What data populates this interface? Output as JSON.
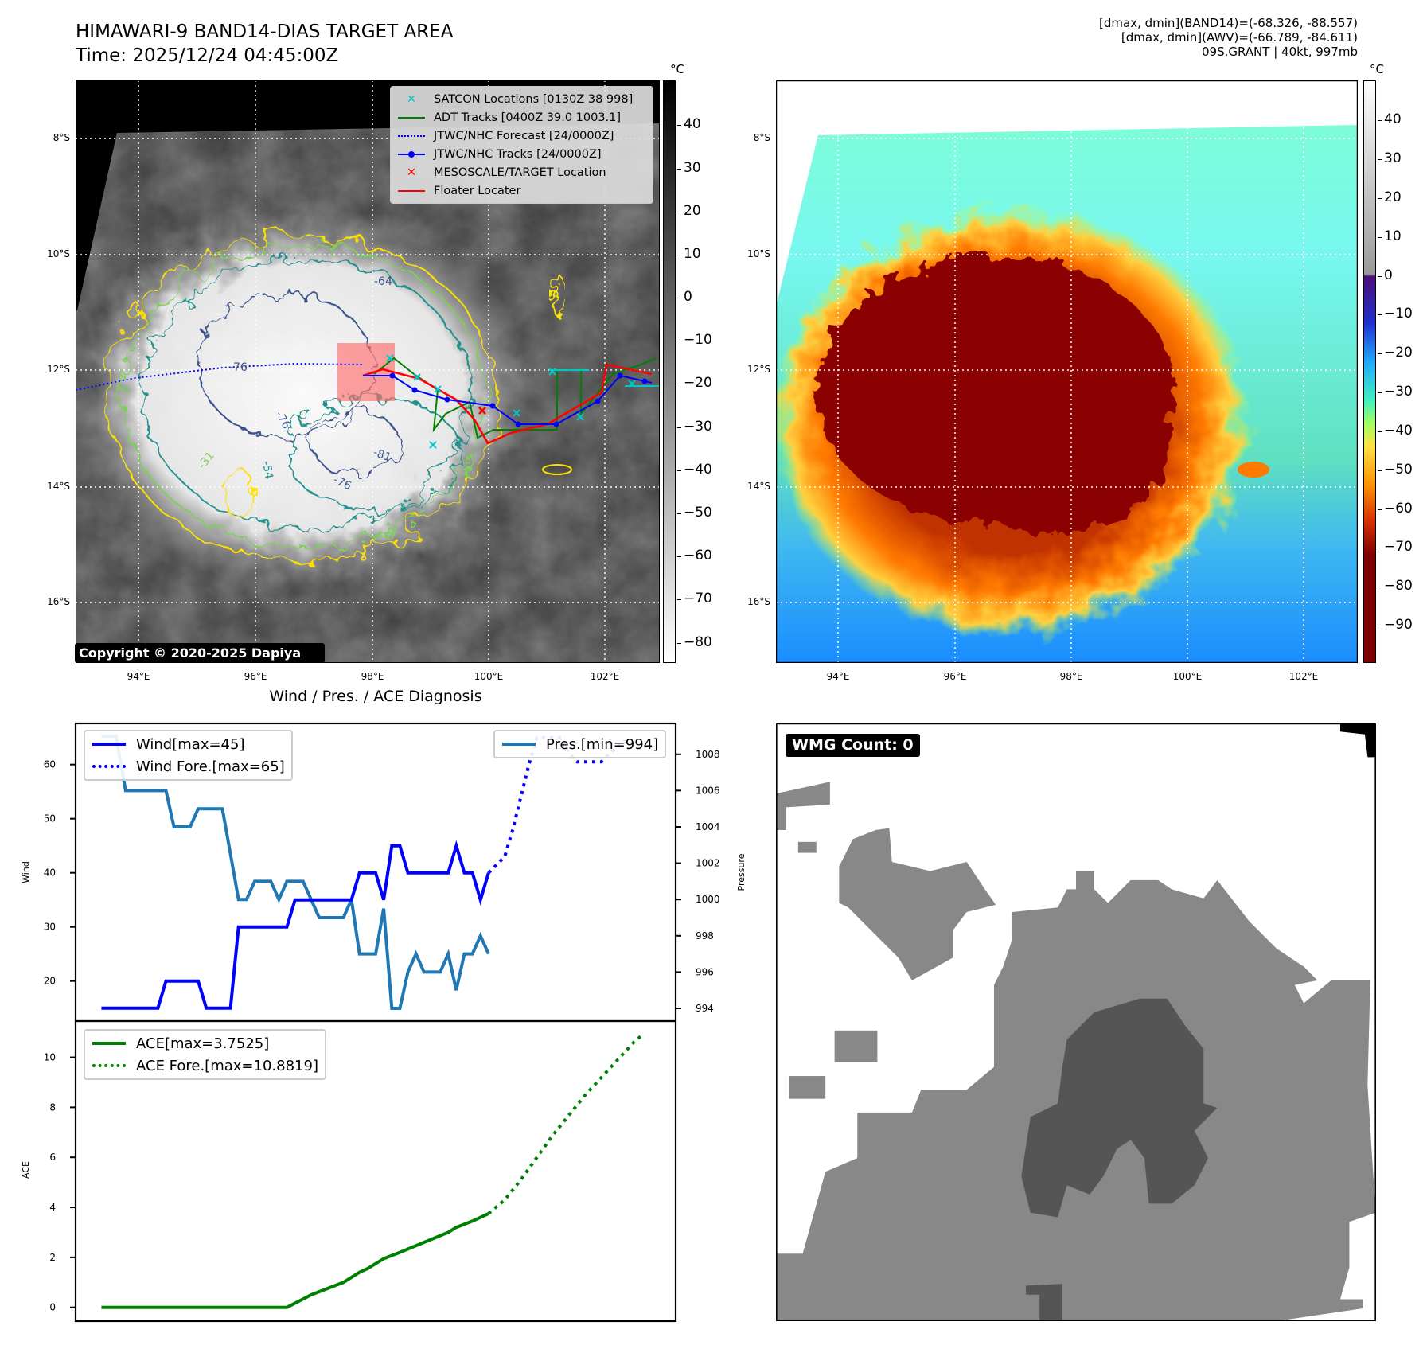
{
  "header": {
    "title": "HIMAWARI-9 BAND14-DIAS TARGET AREA",
    "time": "Time: 2025/12/24 04:45:00Z"
  },
  "info": {
    "line1": "[dmax, dmin](BAND14)=(-68.326, -88.557)",
    "line2": "[dmax, dmin](AWV)=(-66.789, -84.611)",
    "line3": "09S.GRANT | 40kt, 997mb"
  },
  "units": {
    "cb": "°C"
  },
  "map_axes": {
    "lon_labels": [
      "94°E",
      "96°E",
      "98°E",
      "100°E",
      "102°E"
    ],
    "lat_labels": [
      "8°S",
      "10°S",
      "12°S",
      "14°S",
      "16°S"
    ]
  },
  "colorbar_left": {
    "ticks": [
      "40",
      "30",
      "20",
      "10",
      "0",
      "−10",
      "−20",
      "−30",
      "−40",
      "−50",
      "−60",
      "−70",
      "−80"
    ],
    "values": [
      40,
      30,
      20,
      10,
      0,
      -10,
      -20,
      -30,
      -40,
      -50,
      -60,
      -70,
      -80
    ],
    "range": [
      -84.7,
      50.4
    ]
  },
  "colorbar_right": {
    "ticks": [
      "40",
      "30",
      "20",
      "10",
      "0",
      "−10",
      "−20",
      "−30",
      "−40",
      "−50",
      "−60",
      "−70",
      "−80",
      "−90"
    ],
    "values": [
      40,
      30,
      20,
      10,
      0,
      -10,
      -20,
      -30,
      -40,
      -50,
      -60,
      -70,
      -80,
      -90
    ],
    "range": [
      -99.6,
      50.3
    ]
  },
  "legend": {
    "items": [
      "SATCON Locations [0130Z 38 998]",
      "ADT Tracks [0400Z 39.0 1003.1]",
      "JTWC/NHC Forecast [24/0000Z]",
      "JTWC/NHC Tracks [24/0000Z]",
      "MESOSCALE/TARGET Location",
      "Floater Locater"
    ]
  },
  "contour_labels": [
    "-64",
    "-76",
    "-76",
    "-81",
    "-76",
    "-54",
    "-31"
  ],
  "copyright": "Copyright © 2020-2025 Dapiya",
  "wmg": "WMG Count: 0",
  "colors": {
    "wind": "#0000ff",
    "pres": "#1f77b4",
    "ace": "#008000",
    "track_red": "#ff0000",
    "track_blue": "#0000ff",
    "adt": "#008000",
    "satcon": "#00c8c8"
  },
  "chart_data": [
    {
      "type": "line",
      "title": "Wind / Pres. / ACE Diagnosis",
      "ylabel": "Wind",
      "y2label": "Pressure",
      "ylim": [
        12.6,
        67.6
      ],
      "y2lim": [
        993.3,
        1009.7
      ],
      "xlim": [
        -3.2,
        71.2
      ],
      "yticks": [
        20,
        30,
        40,
        50,
        60
      ],
      "y2ticks": [
        994,
        996,
        998,
        1000,
        1002,
        1004,
        1006,
        1008
      ],
      "series": [
        {
          "name": "Wind[max=45]",
          "style": "solid",
          "axis": "left",
          "points": [
            [
              0,
              15
            ],
            [
              7,
              15
            ],
            [
              8,
              20
            ],
            [
              12,
              20
            ],
            [
              13,
              15
            ],
            [
              16,
              15
            ],
            [
              17,
              30
            ],
            [
              23,
              30
            ],
            [
              24,
              35
            ],
            [
              31,
              35
            ],
            [
              32,
              40
            ],
            [
              34,
              40
            ],
            [
              35,
              35
            ],
            [
              36,
              45
            ],
            [
              37,
              45
            ],
            [
              38,
              40
            ],
            [
              43,
              40
            ],
            [
              44,
              45
            ],
            [
              45,
              40
            ],
            [
              46,
              40
            ],
            [
              47,
              35
            ],
            [
              48,
              40
            ]
          ]
        },
        {
          "name": "Wind Fore.[max=65]",
          "style": "dotted",
          "axis": "left",
          "points": [
            [
              48,
              40
            ],
            [
              50,
              43
            ],
            [
              51,
              48
            ],
            [
              52,
              54
            ],
            [
              53,
              60
            ],
            [
              54,
              65
            ],
            [
              57,
              65
            ],
            [
              58,
              62
            ],
            [
              59,
              60.5
            ],
            [
              62,
              60.5
            ],
            [
              63,
              62
            ],
            [
              65,
              64.5
            ]
          ]
        },
        {
          "name": "Pres.[min=994]",
          "style": "solid",
          "axis": "right",
          "points": [
            [
              0,
              1009
            ],
            [
              1.8,
              1009
            ],
            [
              3,
              1006
            ],
            [
              8,
              1006
            ],
            [
              9,
              1004
            ],
            [
              11,
              1004
            ],
            [
              12,
              1005
            ],
            [
              15,
              1005
            ],
            [
              16,
              1002.5
            ],
            [
              17,
              1000
            ],
            [
              18,
              1000
            ],
            [
              19,
              1001
            ],
            [
              21,
              1001
            ],
            [
              22,
              1000
            ],
            [
              23,
              1001
            ],
            [
              25,
              1001
            ],
            [
              26,
              1000
            ],
            [
              27,
              999
            ],
            [
              30,
              999
            ],
            [
              31,
              1000
            ],
            [
              32,
              997
            ],
            [
              34,
              997
            ],
            [
              35,
              999.5
            ],
            [
              36,
              994
            ],
            [
              37,
              994
            ],
            [
              38,
              996
            ],
            [
              39,
              997
            ],
            [
              40,
              996
            ],
            [
              42,
              996
            ],
            [
              43,
              997
            ],
            [
              44,
              995
            ],
            [
              45,
              997
            ],
            [
              46,
              997
            ],
            [
              47,
              998
            ],
            [
              48,
              997
            ]
          ]
        }
      ]
    },
    {
      "type": "line",
      "ylabel": "ACE",
      "ylim": [
        -0.55,
        11.45
      ],
      "xlim": [
        -3.2,
        71.2
      ],
      "yticks": [
        0,
        2,
        4,
        6,
        8,
        10
      ],
      "series": [
        {
          "name": "ACE[max=3.7525]",
          "style": "solid",
          "points": [
            [
              0,
              0
            ],
            [
              23,
              0
            ],
            [
              26,
              0.5
            ],
            [
              30,
              1.0
            ],
            [
              32,
              1.4
            ],
            [
              33,
              1.55
            ],
            [
              35,
              1.95
            ],
            [
              37,
              2.2
            ],
            [
              40,
              2.6
            ],
            [
              43,
              3.0
            ],
            [
              44,
              3.2
            ],
            [
              46,
              3.45
            ],
            [
              48,
              3.75
            ]
          ]
        },
        {
          "name": "ACE Fore.[max=10.8819]",
          "style": "dotted",
          "points": [
            [
              48,
              3.75
            ],
            [
              50,
              4.3
            ],
            [
              52,
              5.1
            ],
            [
              54,
              6.0
            ],
            [
              56,
              6.9
            ],
            [
              58,
              7.7
            ],
            [
              60,
              8.5
            ],
            [
              62,
              9.2
            ],
            [
              64,
              9.9
            ],
            [
              66,
              10.6
            ],
            [
              67,
              10.88
            ]
          ]
        }
      ]
    }
  ]
}
